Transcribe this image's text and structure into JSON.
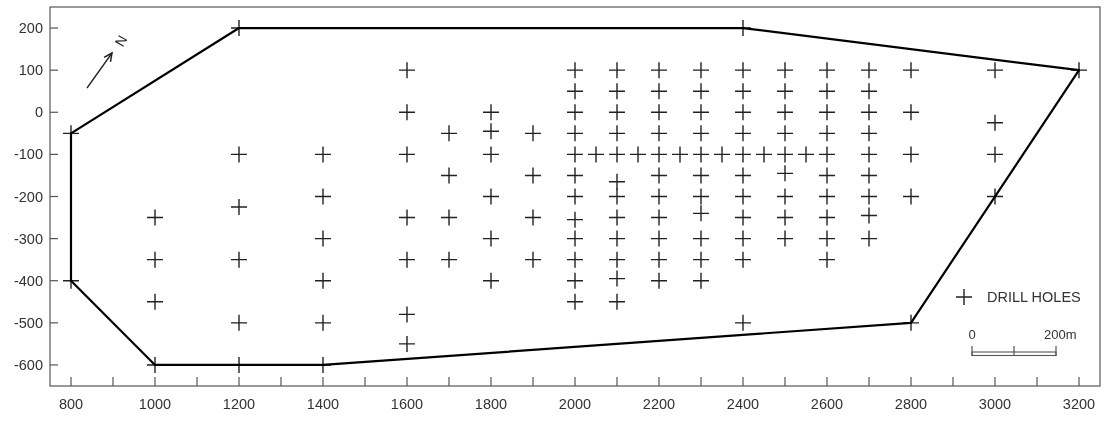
{
  "chart_data": {
    "type": "scatter",
    "xlim": [
      750,
      3250
    ],
    "ylim": [
      -650,
      250
    ],
    "xticks": [
      800,
      {
        "value": 900,
        "label": null
      },
      1000,
      {
        "value": 1100,
        "label": null
      },
      1200,
      {
        "value": 1300,
        "label": null
      },
      1400,
      {
        "value": 1500,
        "label": null
      },
      1600,
      {
        "value": 1700,
        "label": null
      },
      1800,
      {
        "value": 1900,
        "label": null
      },
      2000,
      {
        "value": 2100,
        "label": null
      },
      2200,
      {
        "value": 2300,
        "label": null
      },
      2400,
      {
        "value": 2500,
        "label": null
      },
      2600,
      {
        "value": 2700,
        "label": null
      },
      2800,
      {
        "value": 2900,
        "label": null
      },
      3000,
      {
        "value": 3100,
        "label": null
      },
      3200
    ],
    "yticks": [
      -600,
      -500,
      -400,
      -300,
      -200,
      -100,
      0,
      100,
      200
    ],
    "legend": "bottom right",
    "annotations": [
      "N",
      "0",
      "200m"
    ],
    "series": [
      {
        "name": "DRILL HOLES",
        "color": "#222222",
        "marker": "cross",
        "x": [
          800,
          800,
          1000,
          1000,
          1000,
          1000,
          1200,
          1200,
          1200,
          1200,
          1200,
          1200,
          1400,
          1400,
          1400,
          1400,
          1400,
          1400,
          1600,
          1600,
          1600,
          1600,
          1600,
          1600,
          1600,
          1700,
          1700,
          1700,
          1700,
          1800,
          1800,
          1800,
          1800,
          1800,
          1800,
          1900,
          1900,
          1900,
          1900,
          2000,
          2000,
          2000,
          2000,
          2000,
          2000,
          2000,
          2000,
          2000,
          2000,
          2000,
          2000,
          2050,
          2100,
          2100,
          2100,
          2100,
          2100,
          2100,
          2100,
          2100,
          2100,
          2100,
          2100,
          2100,
          2150,
          2200,
          2200,
          2200,
          2200,
          2200,
          2200,
          2200,
          2200,
          2200,
          2200,
          2200,
          2250,
          2300,
          2300,
          2300,
          2300,
          2300,
          2300,
          2300,
          2300,
          2300,
          2300,
          2300,
          2350,
          2400,
          2400,
          2400,
          2400,
          2400,
          2400,
          2400,
          2400,
          2400,
          2400,
          2400,
          2400,
          2450,
          2500,
          2500,
          2500,
          2500,
          2500,
          2500,
          2500,
          2500,
          2500,
          2550,
          2600,
          2600,
          2600,
          2600,
          2600,
          2600,
          2600,
          2600,
          2600,
          2600,
          2700,
          2700,
          2700,
          2700,
          2700,
          2700,
          2700,
          2700,
          2700,
          2800,
          2800,
          2800,
          2800,
          2800,
          3000,
          3000,
          3000,
          3000,
          3200
        ],
        "values": [
          -50,
          -400,
          -250,
          -350,
          -450,
          -600,
          200,
          -100,
          -225,
          -350,
          -500,
          -600,
          -100,
          -200,
          -300,
          -400,
          -500,
          -600,
          100,
          0,
          -100,
          -250,
          -350,
          -480,
          -550,
          -50,
          -150,
          -250,
          -350,
          0,
          -45,
          -100,
          -200,
          -300,
          -400,
          -50,
          -150,
          -250,
          -350,
          100,
          50,
          0,
          -50,
          -100,
          -150,
          -200,
          -255,
          -300,
          -350,
          -400,
          -450,
          -100,
          100,
          50,
          0,
          -50,
          -100,
          -165,
          -200,
          -250,
          -300,
          -350,
          -395,
          -450,
          -100,
          100,
          50,
          0,
          -50,
          -100,
          -150,
          -200,
          -250,
          -300,
          -350,
          -400,
          -100,
          100,
          50,
          0,
          -50,
          -100,
          -150,
          -200,
          -240,
          -300,
          -350,
          -400,
          -100,
          200,
          100,
          50,
          0,
          -50,
          -100,
          -150,
          -200,
          -250,
          -300,
          -350,
          -500,
          -100,
          100,
          50,
          0,
          -50,
          -100,
          -145,
          -200,
          -250,
          -300,
          -100,
          100,
          50,
          0,
          -50,
          -100,
          -150,
          -200,
          -250,
          -300,
          -350,
          100,
          50,
          0,
          -50,
          -100,
          -150,
          -200,
          -245,
          -300,
          100,
          0,
          -100,
          -200,
          -500,
          100,
          -25,
          -100,
          -200,
          100
        ]
      },
      {
        "type": "line",
        "color": "#000000",
        "x": [
          800,
          1200,
          2400,
          3200
        ],
        "values": [
          -50,
          200,
          200,
          100
        ]
      },
      {
        "type": "line",
        "color": "#000000",
        "x": [
          800,
          800,
          1000,
          1400,
          2800,
          3200
        ],
        "values": [
          -50,
          -400,
          -600,
          -600,
          -500,
          100
        ]
      }
    ]
  }
}
